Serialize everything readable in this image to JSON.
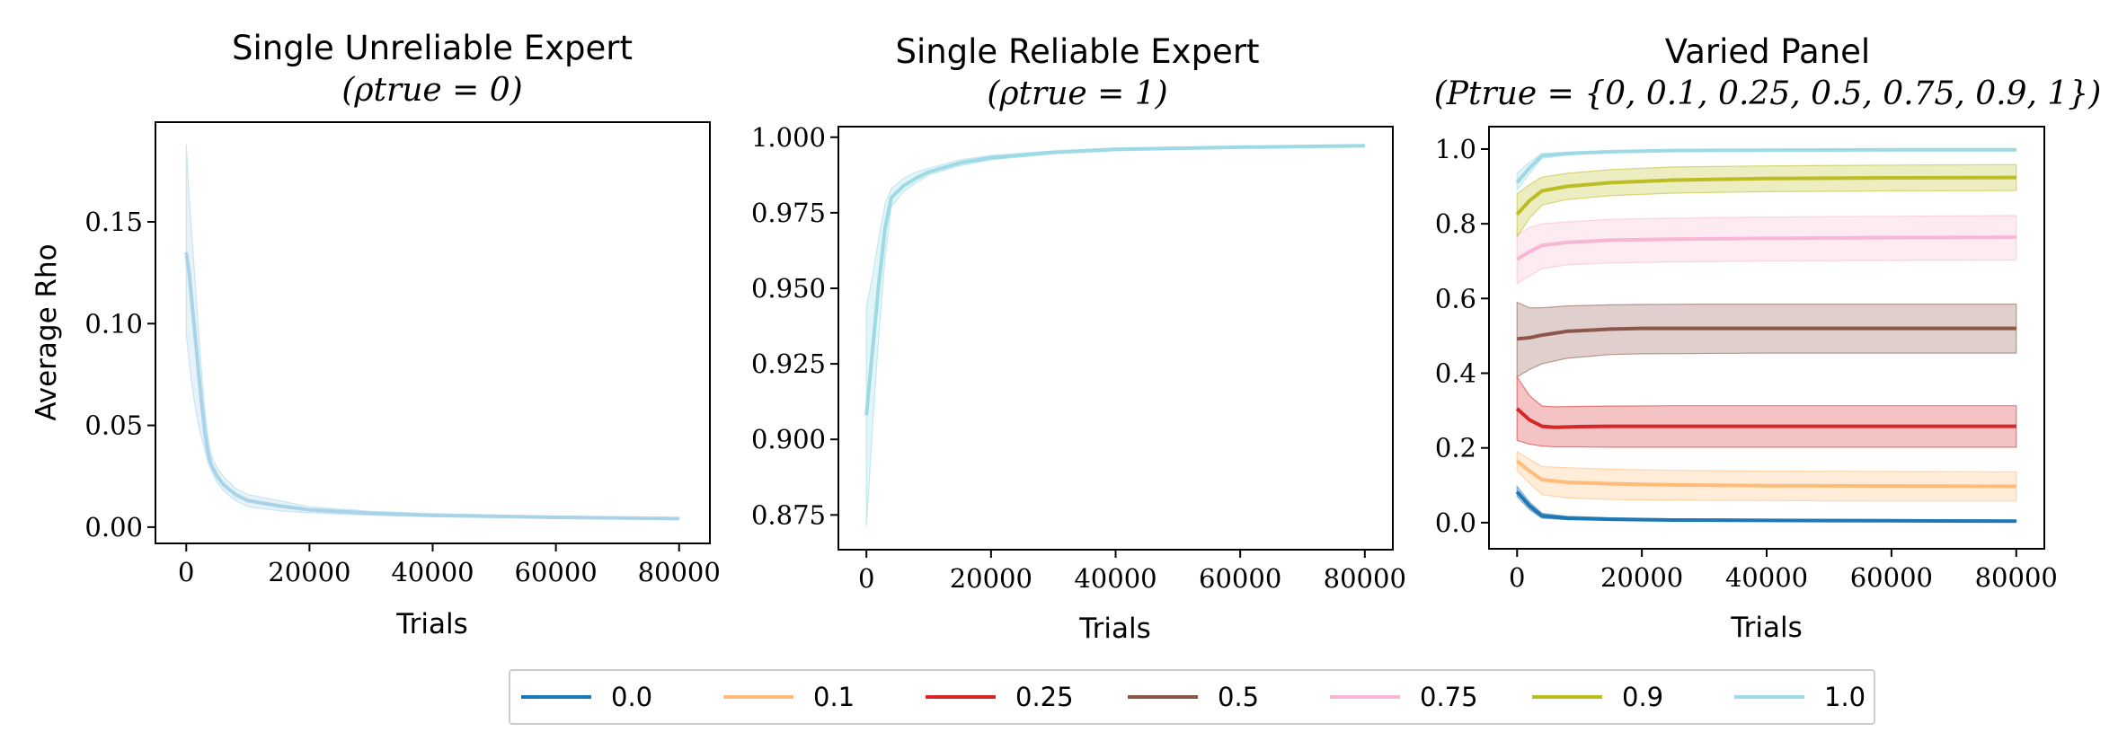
{
  "chart_data": [
    {
      "type": "line",
      "title": "Single Unreliable Expert",
      "subtitle": "(ρtrue = 0)",
      "xlabel": "Trials",
      "ylabel": "Average Rho",
      "xlim": [
        -5000,
        85000
      ],
      "ylim": [
        -0.008,
        0.199
      ],
      "xticks": [
        0,
        20000,
        40000,
        60000,
        80000
      ],
      "yticks": [
        0.0,
        0.05,
        0.1,
        0.15
      ],
      "ytick_decimals": 2,
      "series": [
        {
          "name": "1.0",
          "color": "#a8d3e8",
          "x": [
            0,
            500,
            1000,
            1500,
            2000,
            2500,
            3000,
            3500,
            4000,
            5000,
            6000,
            8000,
            10000,
            15000,
            20000,
            30000,
            40000,
            60000,
            80000
          ],
          "y": [
            0.135,
            0.124,
            0.108,
            0.092,
            0.076,
            0.061,
            0.047,
            0.037,
            0.031,
            0.025,
            0.021,
            0.016,
            0.013,
            0.0105,
            0.0085,
            0.0068,
            0.0058,
            0.0048,
            0.0042
          ],
          "lower": [
            0.095,
            0.08,
            0.068,
            0.058,
            0.05,
            0.044,
            0.038,
            0.032,
            0.028,
            0.022,
            0.018,
            0.013,
            0.01,
            0.008,
            0.007,
            0.0058,
            0.0051,
            0.0043,
            0.0038
          ],
          "upper": [
            0.188,
            0.16,
            0.14,
            0.118,
            0.096,
            0.076,
            0.058,
            0.045,
            0.036,
            0.029,
            0.025,
            0.019,
            0.016,
            0.013,
            0.01,
            0.0078,
            0.0066,
            0.0054,
            0.0047
          ]
        }
      ]
    },
    {
      "type": "line",
      "title": "Single Reliable Expert",
      "subtitle": "(ρtrue = 1)",
      "xlabel": "Trials",
      "ylabel": "",
      "xlim": [
        -4500,
        84500
      ],
      "ylim": [
        0.8635,
        1.0035
      ],
      "xticks": [
        0,
        20000,
        40000,
        60000,
        80000
      ],
      "yticks": [
        0.875,
        0.9,
        0.925,
        0.95,
        0.975,
        1.0
      ],
      "ytick_decimals": 3,
      "series": [
        {
          "name": "1.0",
          "color": "#9edae5",
          "x": [
            0,
            1000,
            2000,
            3000,
            4000,
            6000,
            8000,
            10000,
            15000,
            20000,
            30000,
            40000,
            60000,
            80000
          ],
          "y": [
            0.908,
            0.93,
            0.952,
            0.97,
            0.98,
            0.984,
            0.9865,
            0.9885,
            0.9915,
            0.9932,
            0.995,
            0.996,
            0.9967,
            0.9972
          ],
          "lower": [
            0.871,
            0.905,
            0.935,
            0.96,
            0.977,
            0.982,
            0.985,
            0.9875,
            0.9905,
            0.9925,
            0.9945,
            0.9955,
            0.9964,
            0.9969
          ],
          "upper": [
            0.944,
            0.954,
            0.967,
            0.978,
            0.983,
            0.9865,
            0.9885,
            0.9897,
            0.9925,
            0.994,
            0.9955,
            0.9965,
            0.997,
            0.9975
          ]
        }
      ]
    },
    {
      "type": "line",
      "title": "Varied Panel",
      "subtitle": "(Ptrue = {0, 0.1, 0.25, 0.5, 0.75, 0.9, 1})",
      "xlabel": "Trials",
      "ylabel": "",
      "xlim": [
        -4500,
        84500
      ],
      "ylim": [
        -0.07,
        1.06
      ],
      "xticks": [
        0,
        20000,
        40000,
        60000,
        80000
      ],
      "yticks": [
        0.0,
        0.2,
        0.4,
        0.6,
        0.8,
        1.0
      ],
      "ytick_decimals": 1,
      "series": [
        {
          "name": "0.0",
          "color": "#1f77b4",
          "x": [
            0,
            2000,
            4000,
            8000,
            15000,
            25000,
            40000,
            60000,
            80000
          ],
          "y": [
            0.083,
            0.045,
            0.018,
            0.012,
            0.009,
            0.007,
            0.006,
            0.005,
            0.004
          ],
          "lower": [
            0.07,
            0.035,
            0.012,
            0.008,
            0.006,
            0.005,
            0.004,
            0.003,
            0.003
          ],
          "upper": [
            0.097,
            0.055,
            0.025,
            0.017,
            0.013,
            0.01,
            0.009,
            0.008,
            0.007
          ]
        },
        {
          "name": "0.1",
          "color": "#ffbb78",
          "x": [
            0,
            2000,
            4000,
            8000,
            15000,
            25000,
            40000,
            60000,
            80000
          ],
          "y": [
            0.165,
            0.138,
            0.115,
            0.108,
            0.104,
            0.101,
            0.099,
            0.098,
            0.097
          ],
          "lower": [
            0.14,
            0.105,
            0.075,
            0.066,
            0.062,
            0.06,
            0.059,
            0.058,
            0.058
          ],
          "upper": [
            0.19,
            0.17,
            0.15,
            0.147,
            0.143,
            0.14,
            0.138,
            0.137,
            0.136
          ]
        },
        {
          "name": "0.25",
          "color": "#d62728",
          "x": [
            0,
            2000,
            4000,
            6000,
            10000,
            15000,
            25000,
            40000,
            60000,
            80000
          ],
          "y": [
            0.305,
            0.275,
            0.258,
            0.255,
            0.257,
            0.258,
            0.258,
            0.258,
            0.258,
            0.258
          ],
          "lower": [
            0.22,
            0.21,
            0.205,
            0.203,
            0.203,
            0.202,
            0.202,
            0.202,
            0.202,
            0.202
          ],
          "upper": [
            0.39,
            0.34,
            0.312,
            0.31,
            0.311,
            0.312,
            0.313,
            0.313,
            0.313,
            0.313
          ]
        },
        {
          "name": "0.5",
          "color": "#8c564b",
          "x": [
            0,
            2000,
            4000,
            8000,
            15000,
            20000,
            30000,
            40000,
            60000,
            80000
          ],
          "y": [
            0.492,
            0.495,
            0.502,
            0.512,
            0.518,
            0.52,
            0.52,
            0.52,
            0.52,
            0.52
          ],
          "lower": [
            0.39,
            0.41,
            0.425,
            0.44,
            0.45,
            0.452,
            0.453,
            0.454,
            0.454,
            0.454
          ],
          "upper": [
            0.59,
            0.575,
            0.575,
            0.58,
            0.583,
            0.584,
            0.585,
            0.585,
            0.585,
            0.585
          ]
        },
        {
          "name": "0.75",
          "color": "#f7b6d2",
          "x": [
            0,
            2000,
            4000,
            8000,
            15000,
            25000,
            40000,
            60000,
            80000
          ],
          "y": [
            0.705,
            0.725,
            0.742,
            0.75,
            0.756,
            0.759,
            0.761,
            0.763,
            0.764
          ],
          "lower": [
            0.64,
            0.66,
            0.68,
            0.69,
            0.695,
            0.698,
            0.7,
            0.702,
            0.703
          ],
          "upper": [
            0.77,
            0.79,
            0.8,
            0.805,
            0.812,
            0.815,
            0.818,
            0.82,
            0.822
          ]
        },
        {
          "name": "0.9",
          "color": "#bcbd22",
          "x": [
            0,
            2000,
            4000,
            8000,
            15000,
            25000,
            40000,
            60000,
            80000
          ],
          "y": [
            0.825,
            0.862,
            0.888,
            0.9,
            0.91,
            0.917,
            0.921,
            0.923,
            0.924
          ],
          "lower": [
            0.765,
            0.815,
            0.85,
            0.865,
            0.875,
            0.882,
            0.886,
            0.888,
            0.889
          ],
          "upper": [
            0.88,
            0.905,
            0.925,
            0.935,
            0.945,
            0.952,
            0.955,
            0.957,
            0.958
          ]
        },
        {
          "name": "1.0",
          "color": "#9edae5",
          "x": [
            0,
            2000,
            4000,
            8000,
            15000,
            25000,
            40000,
            60000,
            80000
          ],
          "y": [
            0.91,
            0.95,
            0.982,
            0.988,
            0.993,
            0.996,
            0.997,
            0.998,
            0.998
          ],
          "lower": [
            0.89,
            0.935,
            0.975,
            0.984,
            0.99,
            0.994,
            0.995,
            0.996,
            0.996
          ],
          "upper": [
            0.935,
            0.965,
            0.988,
            0.992,
            0.996,
            0.998,
            0.999,
            0.999,
            0.999
          ]
        }
      ]
    }
  ],
  "legend": {
    "items": [
      {
        "label": "0.0",
        "color": "#1f77b4"
      },
      {
        "label": "0.1",
        "color": "#ffbb78"
      },
      {
        "label": "0.25",
        "color": "#d62728"
      },
      {
        "label": "0.5",
        "color": "#8c564b"
      },
      {
        "label": "0.75",
        "color": "#f7b6d2"
      },
      {
        "label": "0.9",
        "color": "#bcbd22"
      },
      {
        "label": "1.0",
        "color": "#9edae5"
      }
    ],
    "placement": "bottom-center"
  }
}
